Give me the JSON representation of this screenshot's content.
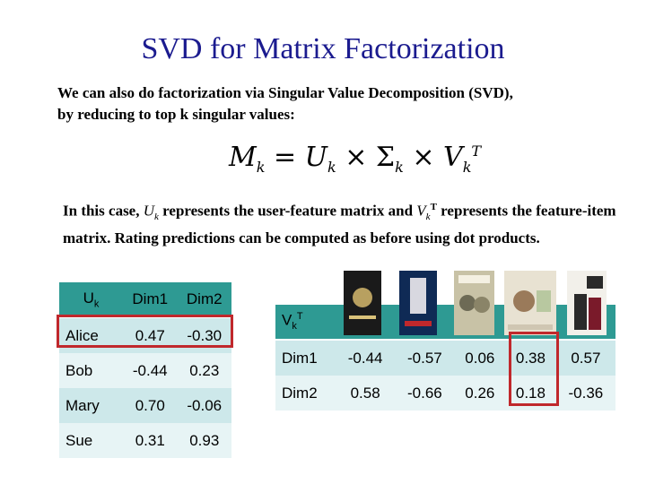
{
  "title": "SVD for Matrix Factorization",
  "intro_line1": "We can also do factorization via Singular Value Decomposition (SVD),",
  "intro_line2": "by reducing to top k singular values:",
  "formula": {
    "lhs": "M",
    "lhs_sub": "k",
    "eq": "=",
    "u": "U",
    "u_sub": "k",
    "times1": "×",
    "sigma": "Σ",
    "sigma_sub": "k",
    "times2": "×",
    "v": "V",
    "v_sub": "k",
    "v_sup": "T"
  },
  "explain": {
    "pre": "In this case, ",
    "u": "U",
    "u_sub": "k",
    "mid1": " represents the user-feature matrix and ",
    "v": "V",
    "v_sub": "k",
    "v_sup": "T",
    "mid2": " represents the feature-item matrix. Rating predictions can be computed as before using dot products."
  },
  "u_table": {
    "corner": "U",
    "corner_sub": "k",
    "headers": [
      "Dim1",
      "Dim2"
    ],
    "rows": [
      {
        "name": "Alice",
        "values": [
          "0.47",
          "-0.30"
        ]
      },
      {
        "name": "Bob",
        "values": [
          "-0.44",
          "0.23"
        ]
      },
      {
        "name": "Mary",
        "values": [
          "0.70",
          "-0.06"
        ]
      },
      {
        "name": "Sue",
        "values": [
          "0.31",
          "0.93"
        ]
      }
    ]
  },
  "v_table": {
    "corner": "V",
    "corner_sub": "k",
    "corner_sup": "T",
    "rows": [
      {
        "name": "Dim1",
        "values": [
          "-0.44",
          "-0.57",
          "0.06",
          "0.38",
          "0.57"
        ]
      },
      {
        "name": "Dim2",
        "values": [
          "0.58",
          "-0.66",
          "0.26",
          "0.18",
          "-0.36"
        ]
      }
    ]
  },
  "posters": [
    {
      "name": "terminator-poster",
      "colors": [
        "#1a1a1a",
        "#b8a060"
      ]
    },
    {
      "name": "die-hard-poster",
      "colors": [
        "#0f2a55",
        "#d8d8e0"
      ]
    },
    {
      "name": "twins-poster",
      "colors": [
        "#c8c2a6",
        "#6d6a55"
      ]
    },
    {
      "name": "eat-pray-love-poster",
      "colors": [
        "#e8e2d2",
        "#9a7a5a"
      ]
    },
    {
      "name": "pretty-woman-poster",
      "colors": [
        "#f2f0ea",
        "#2a2a2a"
      ]
    }
  ],
  "highlight_color": "#c0282c"
}
